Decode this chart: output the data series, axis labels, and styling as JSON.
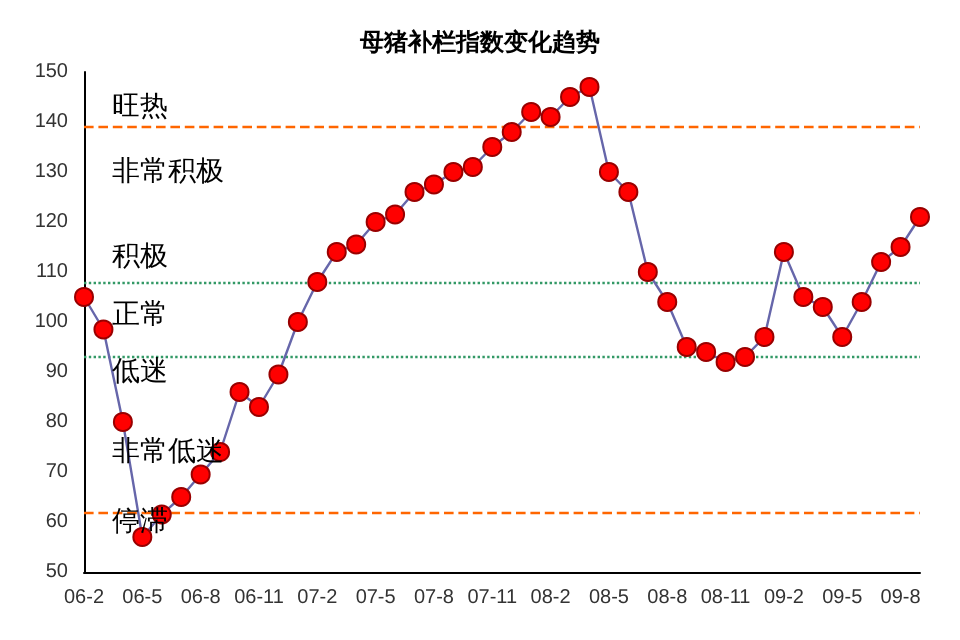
{
  "chart_data": {
    "type": "line",
    "title": "母猪补栏指数变化趋势",
    "categories": [
      "06-2",
      null,
      null,
      "06-5",
      null,
      null,
      "06-8",
      null,
      null,
      "06-11",
      null,
      null,
      "07-2",
      null,
      null,
      "07-5",
      null,
      null,
      "07-8",
      null,
      null,
      "07-11",
      null,
      null,
      "08-2",
      null,
      null,
      "08-5",
      null,
      null,
      "08-8",
      null,
      null,
      "08-11",
      null,
      null,
      "09-2",
      null,
      null,
      "09-5",
      null,
      null,
      "09-8",
      null
    ],
    "series": [
      {
        "color": "#ff0000",
        "values": [
          105,
          98.5,
          80,
          57,
          61.5,
          65,
          69.5,
          74,
          86,
          83,
          89.5,
          100,
          108,
          114,
          115.5,
          120,
          121.5,
          126,
          127.5,
          130,
          131,
          135,
          138,
          142,
          141,
          145,
          147,
          130,
          126,
          110,
          104,
          95,
          94,
          92,
          93,
          97,
          114,
          105,
          103,
          97,
          104,
          112,
          115,
          121
        ]
      }
    ],
    "ylim": [
      50,
      150
    ],
    "yticks": [
      50,
      60,
      70,
      80,
      90,
      100,
      110,
      120,
      130,
      140,
      150
    ],
    "grid": false,
    "marker": "circle",
    "line_style": "solid",
    "ref_lines": [
      {
        "axis": "y",
        "value": 139,
        "color": "#ff6600",
        "line_style": "dashed"
      },
      {
        "axis": "y",
        "value": 108,
        "color": "#339966",
        "line_style": "dotted"
      },
      {
        "axis": "y",
        "value": 93,
        "color": "#339966",
        "line_style": "dotted"
      },
      {
        "axis": "y",
        "value": 62,
        "color": "#ff6600",
        "line_style": "dashed"
      }
    ],
    "annotations": [
      "旺热",
      "非常积极",
      "积极",
      "正常",
      "低迷",
      "非常低迷",
      "停滞"
    ]
  }
}
